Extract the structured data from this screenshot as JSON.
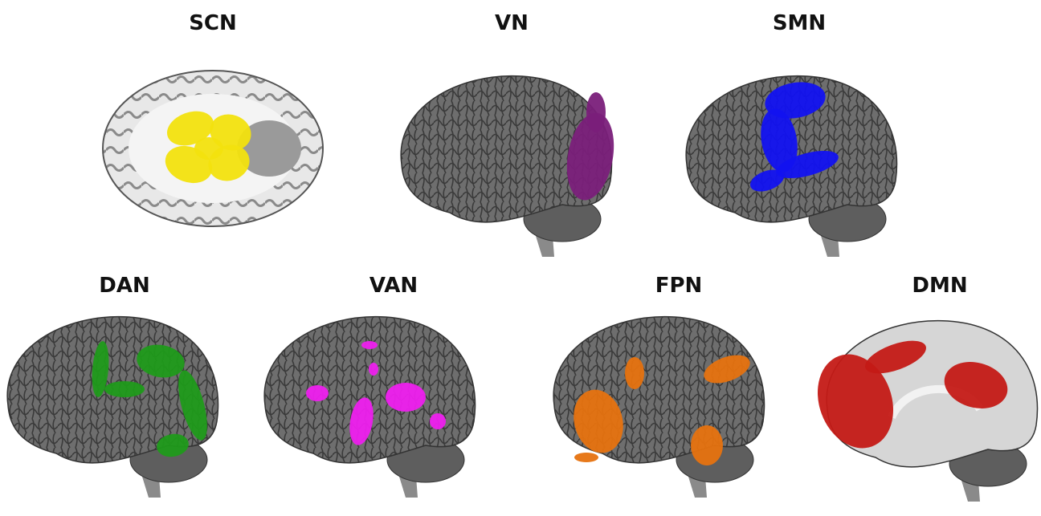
{
  "panels": [
    {
      "label": "SCN",
      "color": "#f2e20e"
    },
    {
      "label": "VN",
      "color": "#7a1f7a"
    },
    {
      "label": "SMN",
      "color": "#1212f0"
    },
    {
      "label": "DAN",
      "color": "#1f9a1a"
    },
    {
      "label": "VAN",
      "color": "#ee1fee"
    },
    {
      "label": "FPN",
      "color": "#e6720f"
    },
    {
      "label": "DMN",
      "color": "#c41a16"
    }
  ]
}
